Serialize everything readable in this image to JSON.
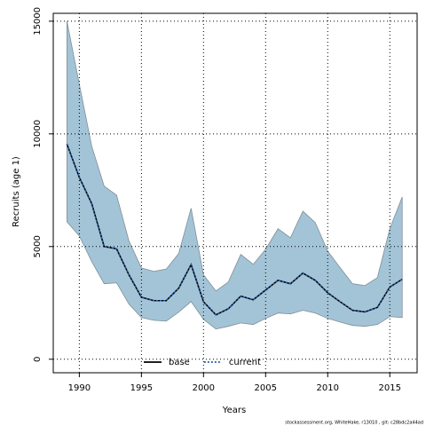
{
  "chart_data": {
    "type": "line",
    "x_label": "Years",
    "y_label": "Recruits (age 1)",
    "x": [
      1989,
      1990,
      1991,
      1992,
      1993,
      1994,
      1995,
      1996,
      1997,
      1998,
      1999,
      2000,
      2001,
      2002,
      2003,
      2004,
      2005,
      2006,
      2007,
      2008,
      2009,
      2010,
      2011,
      2012,
      2013,
      2014,
      2015,
      2016
    ],
    "series": [
      {
        "name": "base",
        "color": "#000000",
        "dash": "solid",
        "values": [
          9550,
          8070,
          6900,
          5000,
          4900,
          3740,
          2750,
          2600,
          2600,
          3150,
          4200,
          2550,
          1970,
          2240,
          2800,
          2640,
          3070,
          3500,
          3350,
          3820,
          3500,
          2950,
          2550,
          2170,
          2100,
          2300,
          3200,
          3550
        ]
      },
      {
        "name": "current",
        "color": "#2a5caa",
        "dash": "dotted",
        "values": [
          9550,
          8070,
          6900,
          5000,
          4900,
          3740,
          2750,
          2600,
          2600,
          3150,
          4200,
          2550,
          1970,
          2240,
          2800,
          2640,
          3070,
          3500,
          3350,
          3820,
          3500,
          2950,
          2550,
          2170,
          2100,
          2300,
          3200,
          3550
        ]
      }
    ],
    "band": {
      "color": "#a3c4d6",
      "upper": [
        15000,
        12200,
        9450,
        7680,
        7280,
        5240,
        4050,
        3900,
        4000,
        4690,
        6700,
        3740,
        3030,
        3430,
        4650,
        4210,
        4880,
        5790,
        5390,
        6570,
        6060,
        4800,
        4060,
        3350,
        3270,
        3620,
        5790,
        7200
      ],
      "lower": [
        6100,
        5470,
        4330,
        3350,
        3390,
        2440,
        1850,
        1730,
        1690,
        2090,
        2560,
        1770,
        1340,
        1460,
        1610,
        1540,
        1810,
        2050,
        2010,
        2170,
        2050,
        1810,
        1650,
        1500,
        1460,
        1540,
        1890,
        1850
      ]
    },
    "xlim": [
      1987.9,
      2017.2
    ],
    "ylim": [
      -600,
      15350
    ],
    "xticks": [
      1990,
      1995,
      2000,
      2005,
      2010,
      2015
    ],
    "yticks": [
      0,
      5000,
      10000,
      15000
    ],
    "grid": true,
    "legend": "bottom",
    "footnote": "stockassessment.org, WhiteHake, r13010 , git: c28bdc2a44ad"
  }
}
